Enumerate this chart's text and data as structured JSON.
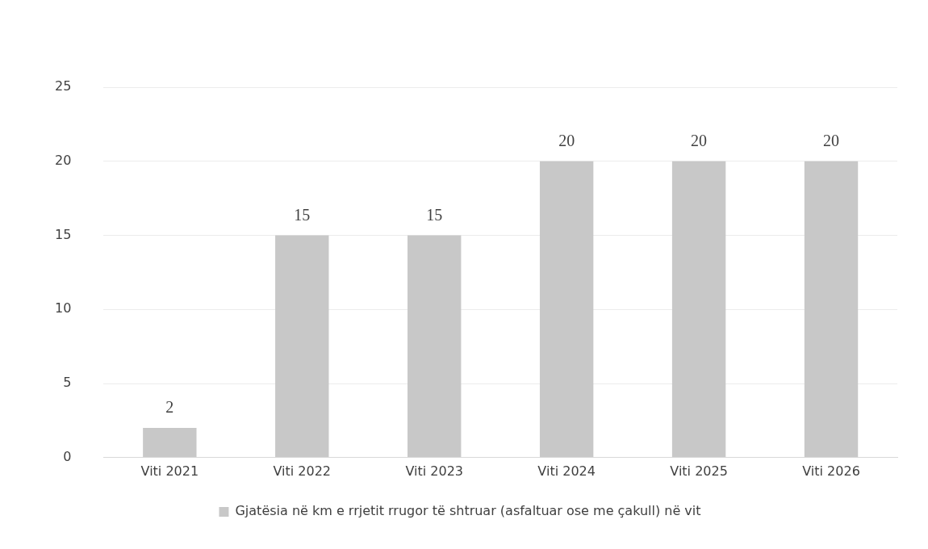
{
  "chart_data": {
    "type": "bar",
    "categories": [
      "Viti 2021",
      "Viti 2022",
      "Viti 2023",
      "Viti 2024",
      "Viti 2025",
      "Viti 2026"
    ],
    "series": [
      {
        "name": "Gjatësia në km e rrjetit rrugor të shtruar (asfaltuar ose me çakull) në vit",
        "color": "#c8c8c8",
        "values": [
          2,
          15,
          15,
          20,
          20,
          20
        ]
      }
    ],
    "ylim": [
      0,
      25
    ],
    "yticks": [
      0,
      5,
      10,
      15,
      20,
      25
    ],
    "grid": "y",
    "legend": "bottom",
    "data_labels": true
  }
}
